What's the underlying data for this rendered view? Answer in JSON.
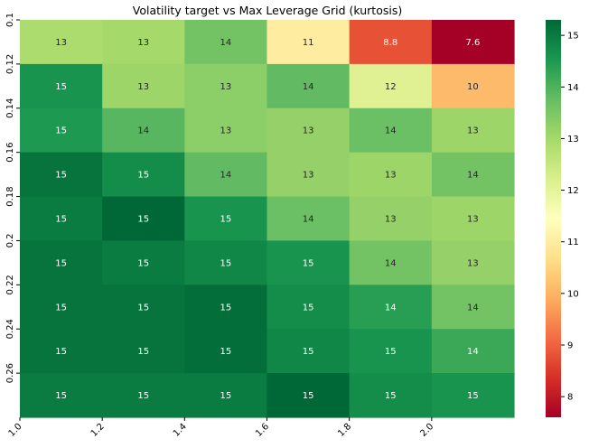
{
  "chart_data": {
    "type": "heatmap",
    "title": "Volatility target vs Max Leverage Grid (kurtosis)",
    "xlabel": "",
    "ylabel": "",
    "x_tick_labels": [
      "1.0",
      "1.2",
      "1.4",
      "1.6",
      "1.8",
      "2.0"
    ],
    "y_tick_labels": [
      "0.1",
      "0.12",
      "0.14",
      "0.16",
      "0.18",
      "0.2",
      "0.22",
      "0.24",
      "0.26"
    ],
    "cells": [
      [
        {
          "value": 12.9,
          "label": "13"
        },
        {
          "value": 13.0,
          "label": "13"
        },
        {
          "value": 13.6,
          "label": "14"
        },
        {
          "value": 11.0,
          "label": "11"
        },
        {
          "value": 8.8,
          "label": "8.8"
        },
        {
          "value": 7.6,
          "label": "7.6"
        }
      ],
      [
        {
          "value": 14.6,
          "label": "15"
        },
        {
          "value": 13.1,
          "label": "13"
        },
        {
          "value": 13.3,
          "label": "13"
        },
        {
          "value": 13.8,
          "label": "14"
        },
        {
          "value": 12.1,
          "label": "12"
        },
        {
          "value": 10.1,
          "label": "10"
        }
      ],
      [
        {
          "value": 14.5,
          "label": "15"
        },
        {
          "value": 13.9,
          "label": "14"
        },
        {
          "value": 13.3,
          "label": "13"
        },
        {
          "value": 13.2,
          "label": "13"
        },
        {
          "value": 13.7,
          "label": "14"
        },
        {
          "value": 13.1,
          "label": "13"
        }
      ],
      [
        {
          "value": 15.1,
          "label": "15"
        },
        {
          "value": 14.7,
          "label": "15"
        },
        {
          "value": 13.8,
          "label": "14"
        },
        {
          "value": 13.2,
          "label": "13"
        },
        {
          "value": 13.1,
          "label": "13"
        },
        {
          "value": 13.6,
          "label": "14"
        }
      ],
      [
        {
          "value": 15.0,
          "label": "15"
        },
        {
          "value": 15.3,
          "label": "15"
        },
        {
          "value": 14.6,
          "label": "15"
        },
        {
          "value": 13.7,
          "label": "14"
        },
        {
          "value": 13.2,
          "label": "13"
        },
        {
          "value": 13.1,
          "label": "13"
        }
      ],
      [
        {
          "value": 15.1,
          "label": "15"
        },
        {
          "value": 15.0,
          "label": "15"
        },
        {
          "value": 14.8,
          "label": "15"
        },
        {
          "value": 14.6,
          "label": "15"
        },
        {
          "value": 13.6,
          "label": "14"
        },
        {
          "value": 13.2,
          "label": "13"
        }
      ],
      [
        {
          "value": 15.1,
          "label": "15"
        },
        {
          "value": 15.1,
          "label": "15"
        },
        {
          "value": 15.2,
          "label": "15"
        },
        {
          "value": 14.7,
          "label": "15"
        },
        {
          "value": 14.4,
          "label": "14"
        },
        {
          "value": 13.6,
          "label": "14"
        }
      ],
      [
        {
          "value": 15.1,
          "label": "15"
        },
        {
          "value": 15.1,
          "label": "15"
        },
        {
          "value": 15.2,
          "label": "15"
        },
        {
          "value": 14.8,
          "label": "15"
        },
        {
          "value": 14.6,
          "label": "15"
        },
        {
          "value": 14.2,
          "label": "14"
        }
      ],
      [
        {
          "value": 15.0,
          "label": "15"
        },
        {
          "value": 15.0,
          "label": "15"
        },
        {
          "value": 15.0,
          "label": "15"
        },
        {
          "value": 15.3,
          "label": "15"
        },
        {
          "value": 14.7,
          "label": "15"
        },
        {
          "value": 14.6,
          "label": "15"
        }
      ]
    ],
    "colormap": "RdYlGn",
    "color_stops": [
      "#a50026",
      "#d73027",
      "#f46d43",
      "#fdae61",
      "#fee08b",
      "#ffffbf",
      "#d9ef8b",
      "#a6d96a",
      "#66bd63",
      "#1a9850",
      "#006837"
    ],
    "vmin": 7.6,
    "vmax": 15.3,
    "colorbar_ticks": [
      8,
      9,
      10,
      11,
      12,
      13,
      14,
      15
    ],
    "colorbar_tick_labels": [
      "8",
      "9",
      "10",
      "11",
      "12",
      "13",
      "14",
      "15"
    ],
    "annotation_dark_color": "#262626",
    "annotation_light_color": "#ffffff",
    "grid": false,
    "legend": "colorbar-right"
  }
}
